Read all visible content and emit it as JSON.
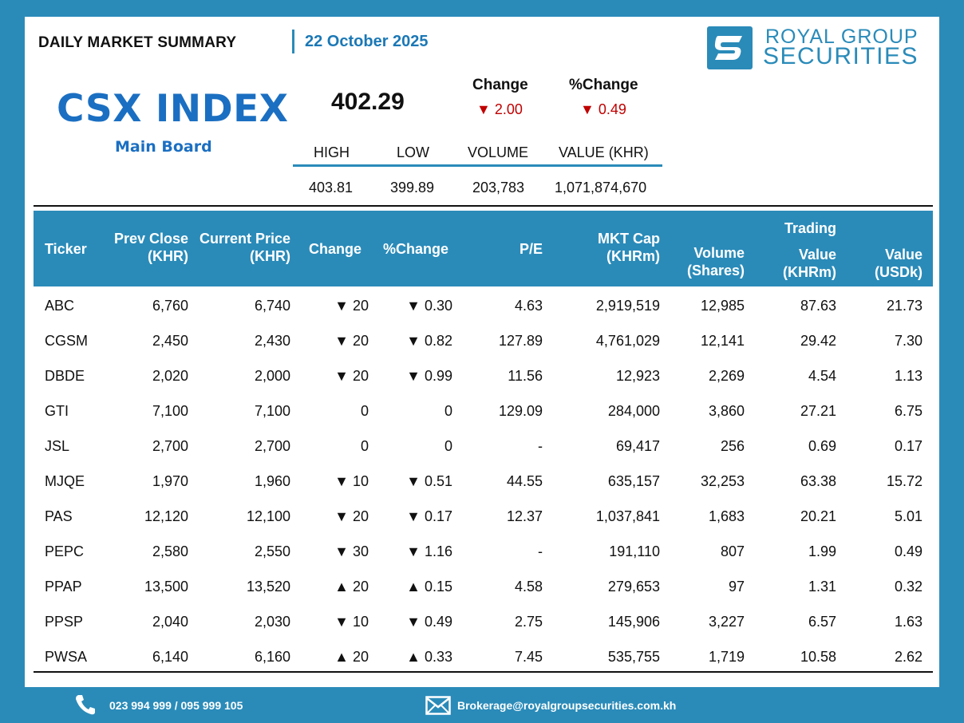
{
  "header": {
    "title": "DAILY MARKET SUMMARY",
    "date": "22 October 2025",
    "brand_line1": "ROYAL GROUP",
    "brand_line2": "SECURITIES"
  },
  "index": {
    "name": "CSX INDEX",
    "board": "Main Board",
    "value": "402.29",
    "change_label": "Change",
    "pct_change_label": "%Change",
    "change": "▼ 2.00",
    "pct_change": "▼ 0.49",
    "stats_headers": [
      "HIGH",
      "LOW",
      "VOLUME",
      "VALUE (KHR)"
    ],
    "stats_values": [
      "403.81",
      "399.89",
      "203,783",
      "1,071,874,670"
    ]
  },
  "table": {
    "headers": {
      "ticker": "Ticker",
      "prev_close_1": "Prev Close",
      "prev_close_2": "(KHR)",
      "current_1": "Current Price",
      "current_2": "(KHR)",
      "change": "Change",
      "pct_change": "%Change",
      "pe": "P/E",
      "mktcap_1": "MKT Cap",
      "mktcap_2": "(KHRm)",
      "volume_1": "Volume",
      "volume_2": "(Shares)",
      "trading": "Trading",
      "value_khr_1": "Value",
      "value_khr_2": "(KHRm)",
      "value_usd_1": "Value",
      "value_usd_2": "(USDk)"
    },
    "rows": [
      {
        "ticker": "ABC",
        "prev": "6,760",
        "cur": "6,740",
        "dir": "down",
        "chg": "▼ 20",
        "pct": "▼ 0.30",
        "pe": "4.63",
        "cap": "2,919,519",
        "vol": "12,985",
        "vkhr": "87.63",
        "vusd": "21.73"
      },
      {
        "ticker": "CGSM",
        "prev": "2,450",
        "cur": "2,430",
        "dir": "down",
        "chg": "▼ 20",
        "pct": "▼ 0.82",
        "pe": "127.89",
        "cap": "4,761,029",
        "vol": "12,141",
        "vkhr": "29.42",
        "vusd": "7.30"
      },
      {
        "ticker": "DBDE",
        "prev": "2,020",
        "cur": "2,000",
        "dir": "down",
        "chg": "▼ 20",
        "pct": "▼ 0.99",
        "pe": "11.56",
        "cap": "12,923",
        "vol": "2,269",
        "vkhr": "4.54",
        "vusd": "1.13"
      },
      {
        "ticker": "GTI",
        "prev": "7,100",
        "cur": "7,100",
        "dir": "flat",
        "chg": "0",
        "pct": "0",
        "pe": "129.09",
        "cap": "284,000",
        "vol": "3,860",
        "vkhr": "27.21",
        "vusd": "6.75"
      },
      {
        "ticker": "JSL",
        "prev": "2,700",
        "cur": "2,700",
        "dir": "flat",
        "chg": "0",
        "pct": "0",
        "pe": "-",
        "cap": "69,417",
        "vol": "256",
        "vkhr": "0.69",
        "vusd": "0.17"
      },
      {
        "ticker": "MJQE",
        "prev": "1,970",
        "cur": "1,960",
        "dir": "down",
        "chg": "▼ 10",
        "pct": "▼ 0.51",
        "pe": "44.55",
        "cap": "635,157",
        "vol": "32,253",
        "vkhr": "63.38",
        "vusd": "15.72"
      },
      {
        "ticker": "PAS",
        "prev": "12,120",
        "cur": "12,100",
        "dir": "down",
        "chg": "▼ 20",
        "pct": "▼ 0.17",
        "pe": "12.37",
        "cap": "1,037,841",
        "vol": "1,683",
        "vkhr": "20.21",
        "vusd": "5.01"
      },
      {
        "ticker": "PEPC",
        "prev": "2,580",
        "cur": "2,550",
        "dir": "down",
        "chg": "▼ 30",
        "pct": "▼ 1.16",
        "pe": "-",
        "cap": "191,110",
        "vol": "807",
        "vkhr": "1.99",
        "vusd": "0.49"
      },
      {
        "ticker": "PPAP",
        "prev": "13,500",
        "cur": "13,520",
        "dir": "up",
        "chg": "▲ 20",
        "pct": "▲ 0.15",
        "pe": "4.58",
        "cap": "279,653",
        "vol": "97",
        "vkhr": "1.31",
        "vusd": "0.32"
      },
      {
        "ticker": "PPSP",
        "prev": "2,040",
        "cur": "2,030",
        "dir": "down",
        "chg": "▼ 10",
        "pct": "▼ 0.49",
        "pe": "2.75",
        "cap": "145,906",
        "vol": "3,227",
        "vkhr": "6.57",
        "vusd": "1.63"
      },
      {
        "ticker": "PWSA",
        "prev": "6,140",
        "cur": "6,160",
        "dir": "up",
        "chg": "▲ 20",
        "pct": "▲ 0.33",
        "pe": "7.45",
        "cap": "535,755",
        "vol": "1,719",
        "vkhr": "10.58",
        "vusd": "2.62"
      }
    ]
  },
  "footer": {
    "phone": "023 994 999 / 095 999 105",
    "email": "Brokerage@royalgroupsecurities.com.kh",
    "phone_icon": "phone-icon",
    "email_icon": "envelope-icon"
  },
  "colors": {
    "brand_blue": "#2a8bb9",
    "index_blue": "#1b6fc2",
    "down_red": "#c00000",
    "up_green": "#2e6b2e"
  }
}
